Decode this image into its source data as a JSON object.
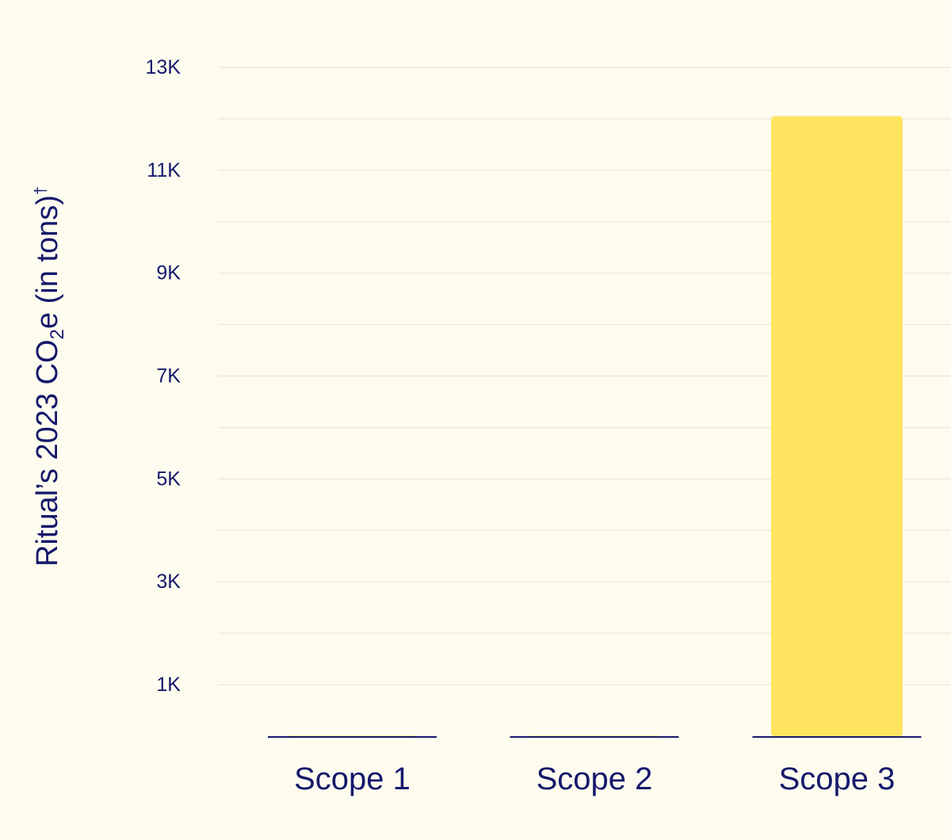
{
  "chart_data": {
    "type": "bar",
    "categories": [
      "Scope 1",
      "Scope 2",
      "Scope 3"
    ],
    "values": [
      10,
      10,
      12050
    ],
    "ylabel": {
      "main": "Ritual’s 2023 CO",
      "subscript": "2",
      "after_subscript": "e  (in tons)",
      "superscript": "†"
    },
    "ylim": [
      0,
      13000
    ],
    "yticks": [
      1000,
      3000,
      5000,
      7000,
      9000,
      11000,
      13000
    ],
    "ytick_labels": [
      "1K",
      "3K",
      "5K",
      "7K",
      "9K",
      "11K",
      "13K"
    ],
    "grid": true,
    "colors": {
      "background": "#fdfcef",
      "bar": "#ffe45f",
      "text": "#15196b",
      "grid": "#ecebdc"
    }
  }
}
